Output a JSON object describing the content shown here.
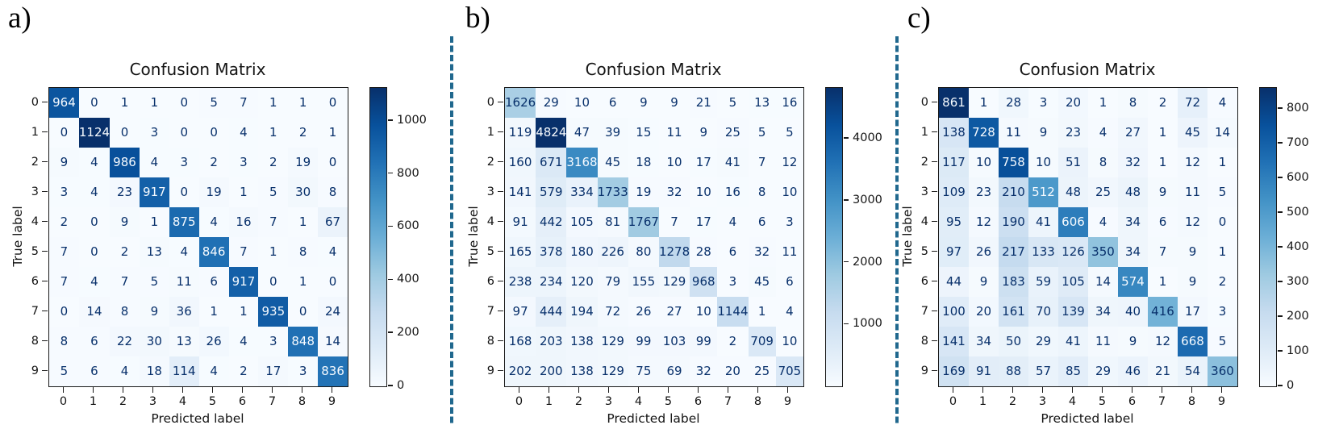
{
  "colors": {
    "separator": "#20688e",
    "cell_text_dark": "#08306b",
    "cell_text_light": "#f7fbff",
    "axis_text": "#141414",
    "colormap_name": "Blues",
    "colormap_anchors": [
      "#f7fbff",
      "#deebf7",
      "#c6dbef",
      "#9ecae1",
      "#6baed6",
      "#4292c6",
      "#2171b5",
      "#08519c",
      "#08306b"
    ]
  },
  "chart_data": [
    {
      "panel_label": "a)",
      "type": "heatmap",
      "title": "Confusion Matrix",
      "xlabel": "Predicted label",
      "ylabel": "True label",
      "x_tick_labels": [
        "0",
        "1",
        "2",
        "3",
        "4",
        "5",
        "6",
        "7",
        "8",
        "9"
      ],
      "y_tick_labels": [
        "0",
        "1",
        "2",
        "3",
        "4",
        "5",
        "6",
        "7",
        "8",
        "9"
      ],
      "matrix": [
        [
          964,
          0,
          1,
          1,
          0,
          5,
          7,
          1,
          1,
          0
        ],
        [
          0,
          1124,
          0,
          3,
          0,
          0,
          4,
          1,
          2,
          1
        ],
        [
          9,
          4,
          986,
          4,
          3,
          2,
          3,
          2,
          19,
          0
        ],
        [
          3,
          4,
          23,
          917,
          0,
          19,
          1,
          5,
          30,
          8
        ],
        [
          2,
          0,
          9,
          1,
          875,
          4,
          16,
          7,
          1,
          67
        ],
        [
          7,
          0,
          2,
          13,
          4,
          846,
          7,
          1,
          8,
          4
        ],
        [
          7,
          4,
          7,
          5,
          11,
          6,
          917,
          0,
          1,
          0
        ],
        [
          0,
          14,
          8,
          9,
          36,
          1,
          1,
          935,
          0,
          24
        ],
        [
          8,
          6,
          22,
          30,
          13,
          26,
          4,
          3,
          848,
          14
        ],
        [
          5,
          6,
          4,
          18,
          114,
          4,
          2,
          17,
          3,
          836
        ]
      ],
      "vmin": 0,
      "vmax": 1124,
      "colorbar_ticks": [
        0,
        200,
        400,
        600,
        800,
        1000
      ],
      "colormap": "Blues",
      "legend_position": "right-colorbar",
      "grid": false
    },
    {
      "panel_label": "b)",
      "type": "heatmap",
      "title": "Confusion Matrix",
      "xlabel": "Predicted label",
      "ylabel": "True label",
      "x_tick_labels": [
        "0",
        "1",
        "2",
        "3",
        "4",
        "5",
        "6",
        "7",
        "8",
        "9"
      ],
      "y_tick_labels": [
        "0",
        "1",
        "2",
        "3",
        "4",
        "5",
        "6",
        "7",
        "8",
        "9"
      ],
      "matrix": [
        [
          1626,
          29,
          10,
          6,
          9,
          9,
          21,
          5,
          13,
          16
        ],
        [
          119,
          4824,
          47,
          39,
          15,
          11,
          9,
          25,
          5,
          5
        ],
        [
          160,
          671,
          3168,
          45,
          18,
          10,
          17,
          41,
          7,
          12
        ],
        [
          141,
          579,
          334,
          1733,
          19,
          32,
          10,
          16,
          8,
          10
        ],
        [
          91,
          442,
          105,
          81,
          1767,
          7,
          17,
          4,
          6,
          3
        ],
        [
          165,
          378,
          180,
          226,
          80,
          1278,
          28,
          6,
          32,
          11
        ],
        [
          238,
          234,
          120,
          79,
          155,
          129,
          968,
          3,
          45,
          6
        ],
        [
          97,
          444,
          194,
          72,
          26,
          27,
          10,
          1144,
          1,
          4
        ],
        [
          168,
          203,
          138,
          129,
          99,
          103,
          99,
          2,
          709,
          10
        ],
        [
          202,
          200,
          138,
          129,
          75,
          69,
          32,
          20,
          25,
          705
        ]
      ],
      "vmin": 0,
      "vmax": 4824,
      "colorbar_ticks": [
        1000,
        2000,
        3000,
        4000
      ],
      "colormap": "Blues",
      "legend_position": "right-colorbar",
      "grid": false
    },
    {
      "panel_label": "c)",
      "type": "heatmap",
      "title": "Confusion Matrix",
      "xlabel": "Predicted label",
      "ylabel": "True label",
      "x_tick_labels": [
        "0",
        "1",
        "2",
        "3",
        "4",
        "5",
        "6",
        "7",
        "8",
        "9"
      ],
      "y_tick_labels": [
        "0",
        "1",
        "2",
        "3",
        "4",
        "5",
        "6",
        "7",
        "8",
        "9"
      ],
      "matrix": [
        [
          861,
          1,
          28,
          3,
          20,
          1,
          8,
          2,
          72,
          4
        ],
        [
          138,
          728,
          11,
          9,
          23,
          4,
          27,
          1,
          45,
          14
        ],
        [
          117,
          10,
          758,
          10,
          51,
          8,
          32,
          1,
          12,
          1
        ],
        [
          109,
          23,
          210,
          512,
          48,
          25,
          48,
          9,
          11,
          5
        ],
        [
          95,
          12,
          190,
          41,
          606,
          4,
          34,
          6,
          12,
          0
        ],
        [
          97,
          26,
          217,
          133,
          126,
          350,
          34,
          7,
          9,
          1
        ],
        [
          44,
          9,
          183,
          59,
          105,
          14,
          574,
          1,
          9,
          2
        ],
        [
          100,
          20,
          161,
          70,
          139,
          34,
          40,
          416,
          17,
          3
        ],
        [
          141,
          34,
          50,
          29,
          41,
          11,
          9,
          12,
          668,
          5
        ],
        [
          169,
          91,
          88,
          57,
          85,
          29,
          46,
          21,
          54,
          360
        ]
      ],
      "vmin": 0,
      "vmax": 861,
      "colorbar_ticks": [
        0,
        100,
        200,
        300,
        400,
        500,
        600,
        700,
        800
      ],
      "colormap": "Blues",
      "legend_position": "right-colorbar",
      "grid": false
    }
  ]
}
